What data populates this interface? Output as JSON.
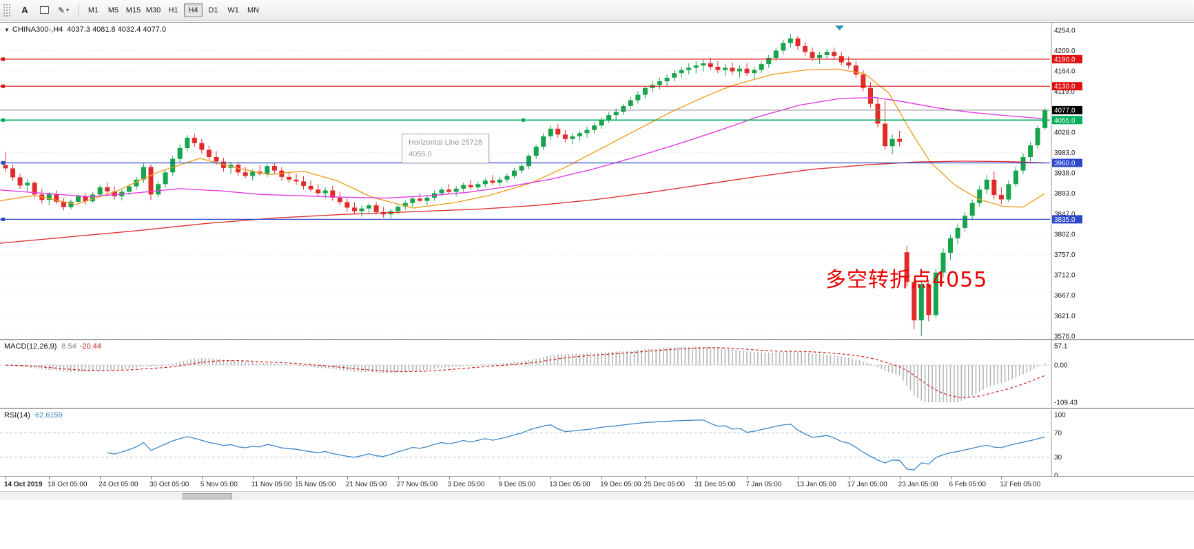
{
  "toolbar": {
    "a_tool": "A",
    "pencil_tool": "✎",
    "timeframes": [
      "M1",
      "M5",
      "M15",
      "M30",
      "H1",
      "H4",
      "D1",
      "W1",
      "MN"
    ],
    "active_timeframe": "H4"
  },
  "chart": {
    "symbol_title": "CHINA300-,H4",
    "ohlc_text": "4037.3 4081.8 4032.4 4077.0",
    "tooltip": {
      "line1": "Horizontal Line 25728",
      "line2": "4055.0"
    },
    "annotation": {
      "text": "多空转折点4055",
      "color": "#e80000"
    }
  },
  "macd_panel": {
    "label": "MACD(12,26,9)",
    "value_main": "8.54",
    "value_signal": "-20.44",
    "axis_labels": [
      "57.1",
      "0.00",
      "-109.43"
    ],
    "axis_values": [
      57.1,
      0,
      -109.43
    ]
  },
  "rsi_panel": {
    "label": "RSI(14)",
    "value": "62.6159",
    "axis_labels": [
      "100",
      "70",
      "30",
      "0"
    ],
    "axis_values": [
      100,
      70,
      30,
      0
    ],
    "levels": [
      70,
      30
    ]
  },
  "chart_data": {
    "type": "candlestick",
    "symbol": "CHINA300-",
    "timeframe": "H4",
    "last_ohlc": {
      "open": 4037.3,
      "high": 4081.8,
      "low": 4032.4,
      "close": 4077.0
    },
    "price_range": [
      3576,
      4254
    ],
    "y_ticks": [
      4254,
      4209,
      4164,
      4119,
      4028,
      3983,
      3938,
      3893,
      3847,
      3802,
      3757,
      3712,
      3667,
      3621,
      3576
    ],
    "colors": {
      "up": "#16a44c",
      "down": "#e12b2b"
    },
    "levels": [
      {
        "price": 4190.0,
        "label": "4190.0",
        "color": "#e01010",
        "type": "resistance",
        "selected": false
      },
      {
        "price": 4130.0,
        "label": "4130.0",
        "color": "#e01010",
        "type": "resistance",
        "selected": false
      },
      {
        "price": 4055.0,
        "label": "4055.0",
        "color": "#00ad5a",
        "type": "pivot",
        "selected": true
      },
      {
        "price": 3960.0,
        "label": "3960.0",
        "color": "#2c46cc",
        "type": "support",
        "selected": false
      },
      {
        "price": 3835.0,
        "label": "3835.0",
        "color": "#2c46cc",
        "type": "support",
        "selected": false
      }
    ],
    "current_price": {
      "price": 4077.0,
      "label": "4077.0"
    },
    "moving_averages": [
      {
        "name": "ma-fast",
        "color": "#efa024",
        "points": [
          [
            0,
            3876
          ],
          [
            50,
            3888
          ],
          [
            110,
            3868
          ],
          [
            170,
            3898
          ],
          [
            230,
            3940
          ],
          [
            290,
            3970
          ],
          [
            340,
            3950
          ],
          [
            390,
            3934
          ],
          [
            440,
            3942
          ],
          [
            490,
            3920
          ],
          [
            540,
            3884
          ],
          [
            600,
            3860
          ],
          [
            660,
            3872
          ],
          [
            710,
            3888
          ],
          [
            770,
            3915
          ],
          [
            820,
            3950
          ],
          [
            870,
            3990
          ],
          [
            920,
            4030
          ],
          [
            970,
            4070
          ],
          [
            1020,
            4105
          ],
          [
            1060,
            4130
          ],
          [
            1120,
            4156
          ],
          [
            1170,
            4166
          ],
          [
            1215,
            4168
          ],
          [
            1255,
            4158
          ],
          [
            1290,
            4115
          ],
          [
            1320,
            4035
          ],
          [
            1350,
            3962
          ],
          [
            1385,
            3912
          ],
          [
            1420,
            3880
          ],
          [
            1455,
            3864
          ],
          [
            1485,
            3862
          ],
          [
            1516,
            3892
          ]
        ]
      },
      {
        "name": "ma-mid",
        "color": "#e23ce2",
        "points": [
          [
            0,
            3900
          ],
          [
            70,
            3892
          ],
          [
            130,
            3885
          ],
          [
            200,
            3894
          ],
          [
            260,
            3903
          ],
          [
            320,
            3898
          ],
          [
            380,
            3890
          ],
          [
            440,
            3887
          ],
          [
            500,
            3884
          ],
          [
            560,
            3882
          ],
          [
            620,
            3887
          ],
          [
            680,
            3895
          ],
          [
            740,
            3908
          ],
          [
            800,
            3924
          ],
          [
            860,
            3946
          ],
          [
            920,
            3972
          ],
          [
            980,
            4000
          ],
          [
            1040,
            4030
          ],
          [
            1100,
            4062
          ],
          [
            1160,
            4088
          ],
          [
            1220,
            4103
          ],
          [
            1270,
            4105
          ],
          [
            1310,
            4096
          ],
          [
            1360,
            4082
          ],
          [
            1410,
            4072
          ],
          [
            1460,
            4065
          ],
          [
            1516,
            4058
          ]
        ]
      },
      {
        "name": "ma-slow",
        "color": "#dd3333",
        "points": [
          [
            0,
            3782
          ],
          [
            100,
            3796
          ],
          [
            200,
            3810
          ],
          [
            300,
            3826
          ],
          [
            400,
            3838
          ],
          [
            500,
            3846
          ],
          [
            600,
            3852
          ],
          [
            700,
            3858
          ],
          [
            780,
            3866
          ],
          [
            860,
            3878
          ],
          [
            940,
            3894
          ],
          [
            1020,
            3912
          ],
          [
            1100,
            3930
          ],
          [
            1180,
            3946
          ],
          [
            1260,
            3956
          ],
          [
            1330,
            3962
          ],
          [
            1400,
            3964
          ],
          [
            1460,
            3963
          ],
          [
            1516,
            3960
          ]
        ]
      }
    ],
    "candles": [
      [
        3955,
        3985,
        3940,
        3948
      ],
      [
        3948,
        3956,
        3920,
        3928
      ],
      [
        3928,
        3936,
        3902,
        3910
      ],
      [
        3910,
        3924,
        3896,
        3916
      ],
      [
        3916,
        3920,
        3882,
        3890
      ],
      [
        3890,
        3902,
        3870,
        3878
      ],
      [
        3878,
        3896,
        3866,
        3891
      ],
      [
        3891,
        3899,
        3869,
        3874
      ],
      [
        3874,
        3882,
        3855,
        3862
      ],
      [
        3862,
        3879,
        3857,
        3874
      ],
      [
        3874,
        3891,
        3869,
        3886
      ],
      [
        3886,
        3893,
        3867,
        3875
      ],
      [
        3875,
        3896,
        3871,
        3890
      ],
      [
        3890,
        3911,
        3884,
        3906
      ],
      [
        3906,
        3916,
        3889,
        3897
      ],
      [
        3897,
        3908,
        3879,
        3886
      ],
      [
        3886,
        3901,
        3877,
        3896
      ],
      [
        3896,
        3913,
        3889,
        3908
      ],
      [
        3908,
        3929,
        3901,
        3923
      ],
      [
        3923,
        3959,
        3916,
        3951
      ],
      [
        3951,
        3957,
        3878,
        3890
      ],
      [
        3890,
        3919,
        3884,
        3913
      ],
      [
        3913,
        3946,
        3906,
        3939
      ],
      [
        3939,
        3976,
        3931,
        3969
      ],
      [
        3969,
        4001,
        3961,
        3993
      ],
      [
        3993,
        4022,
        3986,
        4016
      ],
      [
        4016,
        4025,
        3996,
        4004
      ],
      [
        4004,
        4013,
        3981,
        3989
      ],
      [
        3989,
        3998,
        3966,
        3973
      ],
      [
        3973,
        3986,
        3956,
        3963
      ],
      [
        3963,
        3971,
        3941,
        3949
      ],
      [
        3949,
        3962,
        3936,
        3956
      ],
      [
        3956,
        3963,
        3931,
        3939
      ],
      [
        3939,
        3951,
        3926,
        3931
      ],
      [
        3931,
        3946,
        3921,
        3941
      ],
      [
        3941,
        3956,
        3931,
        3936
      ],
      [
        3936,
        3959,
        3929,
        3953
      ],
      [
        3953,
        3961,
        3936,
        3943
      ],
      [
        3943,
        3951,
        3921,
        3929
      ],
      [
        3929,
        3941,
        3916,
        3923
      ],
      [
        3923,
        3936,
        3911,
        3919
      ],
      [
        3919,
        3931,
        3901,
        3909
      ],
      [
        3909,
        3921,
        3896,
        3901
      ],
      [
        3901,
        3913,
        3886,
        3893
      ],
      [
        3893,
        3906,
        3881,
        3899
      ],
      [
        3899,
        3909,
        3876,
        3883
      ],
      [
        3883,
        3896,
        3866,
        3873
      ],
      [
        3873,
        3881,
        3853,
        3861
      ],
      [
        3861,
        3873,
        3846,
        3853
      ],
      [
        3853,
        3866,
        3841,
        3859
      ],
      [
        3859,
        3871,
        3849,
        3866
      ],
      [
        3866,
        3873,
        3846,
        3851
      ],
      [
        3851,
        3863,
        3839,
        3846
      ],
      [
        3846,
        3859,
        3837,
        3853
      ],
      [
        3853,
        3869,
        3846,
        3863
      ],
      [
        3863,
        3876,
        3856,
        3871
      ],
      [
        3871,
        3886,
        3863,
        3881
      ],
      [
        3881,
        3893,
        3871,
        3876
      ],
      [
        3876,
        3889,
        3866,
        3883
      ],
      [
        3883,
        3899,
        3876,
        3893
      ],
      [
        3893,
        3906,
        3886,
        3901
      ],
      [
        3901,
        3913,
        3891,
        3896
      ],
      [
        3896,
        3909,
        3886,
        3903
      ],
      [
        3903,
        3916,
        3896,
        3911
      ],
      [
        3911,
        3923,
        3901,
        3906
      ],
      [
        3906,
        3919,
        3899,
        3913
      ],
      [
        3913,
        3926,
        3906,
        3921
      ],
      [
        3921,
        3933,
        3911,
        3916
      ],
      [
        3916,
        3929,
        3909,
        3923
      ],
      [
        3923,
        3936,
        3916,
        3931
      ],
      [
        3931,
        3949,
        3926,
        3943
      ],
      [
        3943,
        3959,
        3936,
        3953
      ],
      [
        3953,
        3981,
        3946,
        3976
      ],
      [
        3976,
        4001,
        3969,
        3996
      ],
      [
        3996,
        4026,
        3989,
        4019
      ],
      [
        4019,
        4043,
        4011,
        4036
      ],
      [
        4036,
        4046,
        4016,
        4023
      ],
      [
        4023,
        4033,
        4006,
        4013
      ],
      [
        4013,
        4026,
        4001,
        4019
      ],
      [
        4019,
        4031,
        4009,
        4026
      ],
      [
        4026,
        4041,
        4016,
        4033
      ],
      [
        4033,
        4049,
        4026,
        4043
      ],
      [
        4043,
        4061,
        4036,
        4056
      ],
      [
        4056,
        4073,
        4049,
        4066
      ],
      [
        4066,
        4081,
        4056,
        4073
      ],
      [
        4073,
        4091,
        4066,
        4086
      ],
      [
        4086,
        4106,
        4079,
        4099
      ],
      [
        4099,
        4119,
        4091,
        4111
      ],
      [
        4111,
        4131,
        4103,
        4126
      ],
      [
        4126,
        4141,
        4116,
        4133
      ],
      [
        4133,
        4149,
        4123,
        4141
      ],
      [
        4141,
        4156,
        4131,
        4149
      ],
      [
        4149,
        4166,
        4141,
        4159
      ],
      [
        4159,
        4173,
        4149,
        4166
      ],
      [
        4166,
        4181,
        4156,
        4171
      ],
      [
        4171,
        4186,
        4159,
        4176
      ],
      [
        4176,
        4189,
        4163,
        4181
      ],
      [
        4181,
        4193,
        4166,
        4173
      ],
      [
        4173,
        4186,
        4159,
        4166
      ],
      [
        4166,
        4179,
        4153,
        4171
      ],
      [
        4171,
        4183,
        4156,
        4163
      ],
      [
        4163,
        4176,
        4149,
        4169
      ],
      [
        4169,
        4181,
        4153,
        4159
      ],
      [
        4159,
        4173,
        4146,
        4166
      ],
      [
        4166,
        4186,
        4159,
        4179
      ],
      [
        4179,
        4199,
        4171,
        4193
      ],
      [
        4193,
        4216,
        4186,
        4209
      ],
      [
        4209,
        4233,
        4201,
        4226
      ],
      [
        4226,
        4246,
        4216,
        4236
      ],
      [
        4236,
        4241,
        4211,
        4219
      ],
      [
        4219,
        4229,
        4196,
        4206
      ],
      [
        4206,
        4216,
        4186,
        4193
      ],
      [
        4193,
        4206,
        4179,
        4199
      ],
      [
        4199,
        4213,
        4189,
        4206
      ],
      [
        4206,
        4216,
        4191,
        4197
      ],
      [
        4197,
        4206,
        4176,
        4183
      ],
      [
        4183,
        4196,
        4169,
        4176
      ],
      [
        4176,
        4186,
        4149,
        4156
      ],
      [
        4156,
        4166,
        4119,
        4126
      ],
      [
        4126,
        4139,
        4083,
        4091
      ],
      [
        4091,
        4103,
        4039,
        4047
      ],
      [
        4047,
        4099,
        3989,
        3997
      ],
      [
        3997,
        4023,
        3979,
        4013
      ],
      [
        4013,
        4031,
        3997,
        4007
      ],
      [
        3762,
        3776,
        3686,
        3696
      ],
      [
        3696,
        3703,
        3591,
        3611
      ],
      [
        3611,
        3699,
        3576,
        3691
      ],
      [
        3691,
        3701,
        3609,
        3623
      ],
      [
        3623,
        3726,
        3616,
        3717
      ],
      [
        3717,
        3771,
        3706,
        3761
      ],
      [
        3761,
        3801,
        3746,
        3793
      ],
      [
        3793,
        3826,
        3781,
        3816
      ],
      [
        3816,
        3851,
        3807,
        3843
      ],
      [
        3843,
        3879,
        3833,
        3871
      ],
      [
        3871,
        3909,
        3863,
        3901
      ],
      [
        3901,
        3933,
        3891,
        3923
      ],
      [
        3923,
        3941,
        3879,
        3889
      ],
      [
        3889,
        3906,
        3869,
        3879
      ],
      [
        3879,
        3921,
        3873,
        3913
      ],
      [
        3913,
        3951,
        3906,
        3943
      ],
      [
        3943,
        3981,
        3936,
        3973
      ],
      [
        3973,
        4006,
        3963,
        3999
      ],
      [
        3999,
        4043,
        3991,
        4037
      ],
      [
        4037.3,
        4081.8,
        4032.4,
        4077.0
      ]
    ],
    "x_labels": [
      {
        "t": "14 Oct 2019",
        "i": 0
      },
      {
        "t": "18 Oct 05:00",
        "i": 6
      },
      {
        "t": "24 Oct 05:00",
        "i": 13
      },
      {
        "t": "30 Oct 05:00",
        "i": 20
      },
      {
        "t": "5 Nov 05:00",
        "i": 27
      },
      {
        "t": "11 Nov 05:00",
        "i": 34
      },
      {
        "t": "15 Nov 05:00",
        "i": 40
      },
      {
        "t": "21 Nov 05:00",
        "i": 47
      },
      {
        "t": "27 Nov 05:00",
        "i": 54
      },
      {
        "t": "3 Dec 05:00",
        "i": 61
      },
      {
        "t": "9 Dec 05:00",
        "i": 68
      },
      {
        "t": "13 Dec 05:00",
        "i": 75
      },
      {
        "t": "19 Dec 05:00",
        "i": 82
      },
      {
        "t": "25 Dec 05:00",
        "i": 88
      },
      {
        "t": "31 Dec 05:00",
        "i": 95
      },
      {
        "t": "7 Jan 05:00",
        "i": 102
      },
      {
        "t": "13 Jan 05:00",
        "i": 109
      },
      {
        "t": "17 Jan 05:00",
        "i": 116
      },
      {
        "t": "23 Jan 05:00",
        "i": 123
      },
      {
        "t": "6 Feb 05:00",
        "i": 130
      },
      {
        "t": "12 Feb 05:00",
        "i": 137
      }
    ],
    "indicators": {
      "macd": {
        "params": "12,26,9",
        "current_macd": 8.54,
        "current_signal": -20.44,
        "range": [
          -109.43,
          57.1
        ]
      },
      "rsi": {
        "period": 14,
        "current": 62.6159,
        "levels": [
          70,
          30
        ],
        "range": [
          0,
          100
        ]
      }
    }
  }
}
